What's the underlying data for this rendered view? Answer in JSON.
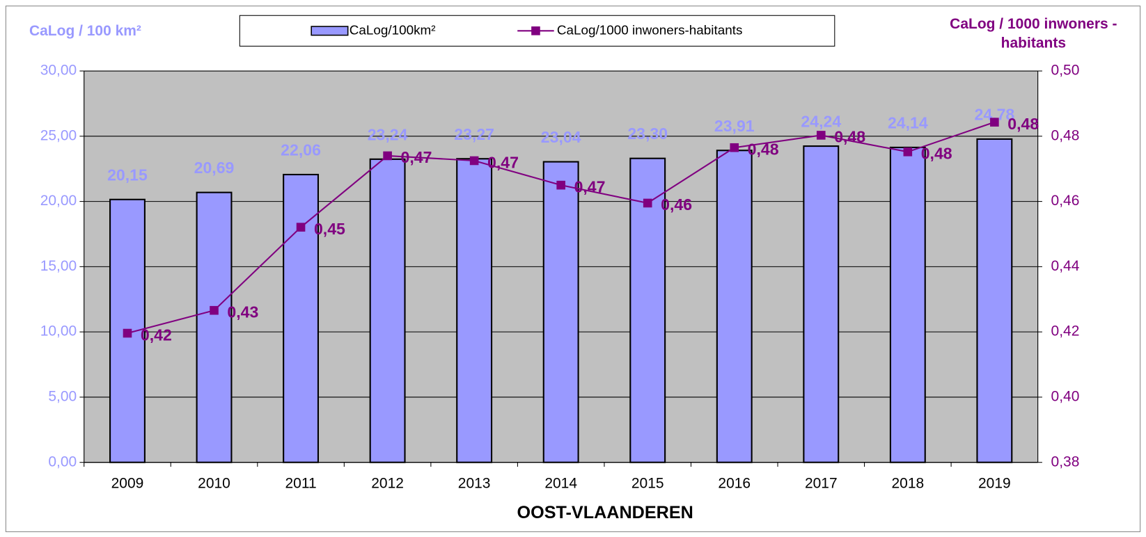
{
  "chart_data": {
    "type": "bar_line",
    "x_label": "OOST-VLAANDEREN",
    "y_label": "CaLog / 100 km²",
    "y2_label": "CaLog / 1000 inwoners - habitants",
    "categories": [
      "2009",
      "2010",
      "2011",
      "2012",
      "2013",
      "2014",
      "2015",
      "2016",
      "2017",
      "2018",
      "2019"
    ],
    "series": [
      {
        "name": "CaLog/100km²",
        "type": "bar",
        "color": "#9999ff",
        "values": [
          20.15,
          20.69,
          22.06,
          23.24,
          23.27,
          23.04,
          23.3,
          23.91,
          24.24,
          24.14,
          24.78
        ],
        "value_labels": [
          "20,15",
          "20,69",
          "22,06",
          "23,24",
          "23,27",
          "23,04",
          "23,30",
          "23,91",
          "24,24",
          "24,14",
          "24,78"
        ]
      },
      {
        "name": "CaLog/1000 inwoners-habitants",
        "type": "line",
        "axis": "y2",
        "color": "#800080",
        "values": [
          0.4196,
          0.4266,
          0.4521,
          0.474,
          0.4725,
          0.465,
          0.4595,
          0.4765,
          0.4803,
          0.4752,
          0.4843
        ],
        "value_labels": [
          "0,42",
          "0,43",
          "0,45",
          "0,47",
          "0,47",
          "0,47",
          "0,46",
          "0,48",
          "0,48",
          "0,48",
          "0,48"
        ]
      }
    ],
    "ylim": [
      0,
      30
    ],
    "yticks": [
      {
        "value": 0,
        "label": "0,00"
      },
      {
        "value": 5,
        "label": "5,00"
      },
      {
        "value": 10,
        "label": "10,00"
      },
      {
        "value": 15,
        "label": "15,00"
      },
      {
        "value": 20,
        "label": "20,00"
      },
      {
        "value": 25,
        "label": "25,00"
      },
      {
        "value": 30,
        "label": "30,00"
      }
    ],
    "y2lim": [
      0.38,
      0.5
    ],
    "y2ticks": [
      {
        "value": 0.38,
        "label": "0,38"
      },
      {
        "value": 0.4,
        "label": "0,40"
      },
      {
        "value": 0.42,
        "label": "0,42"
      },
      {
        "value": 0.44,
        "label": "0,44"
      },
      {
        "value": 0.46,
        "label": "0,46"
      },
      {
        "value": 0.48,
        "label": "0,48"
      },
      {
        "value": 0.5,
        "label": "0,50"
      }
    ],
    "grid": true,
    "plot_background": "#c0c0c0",
    "legend": "top"
  }
}
